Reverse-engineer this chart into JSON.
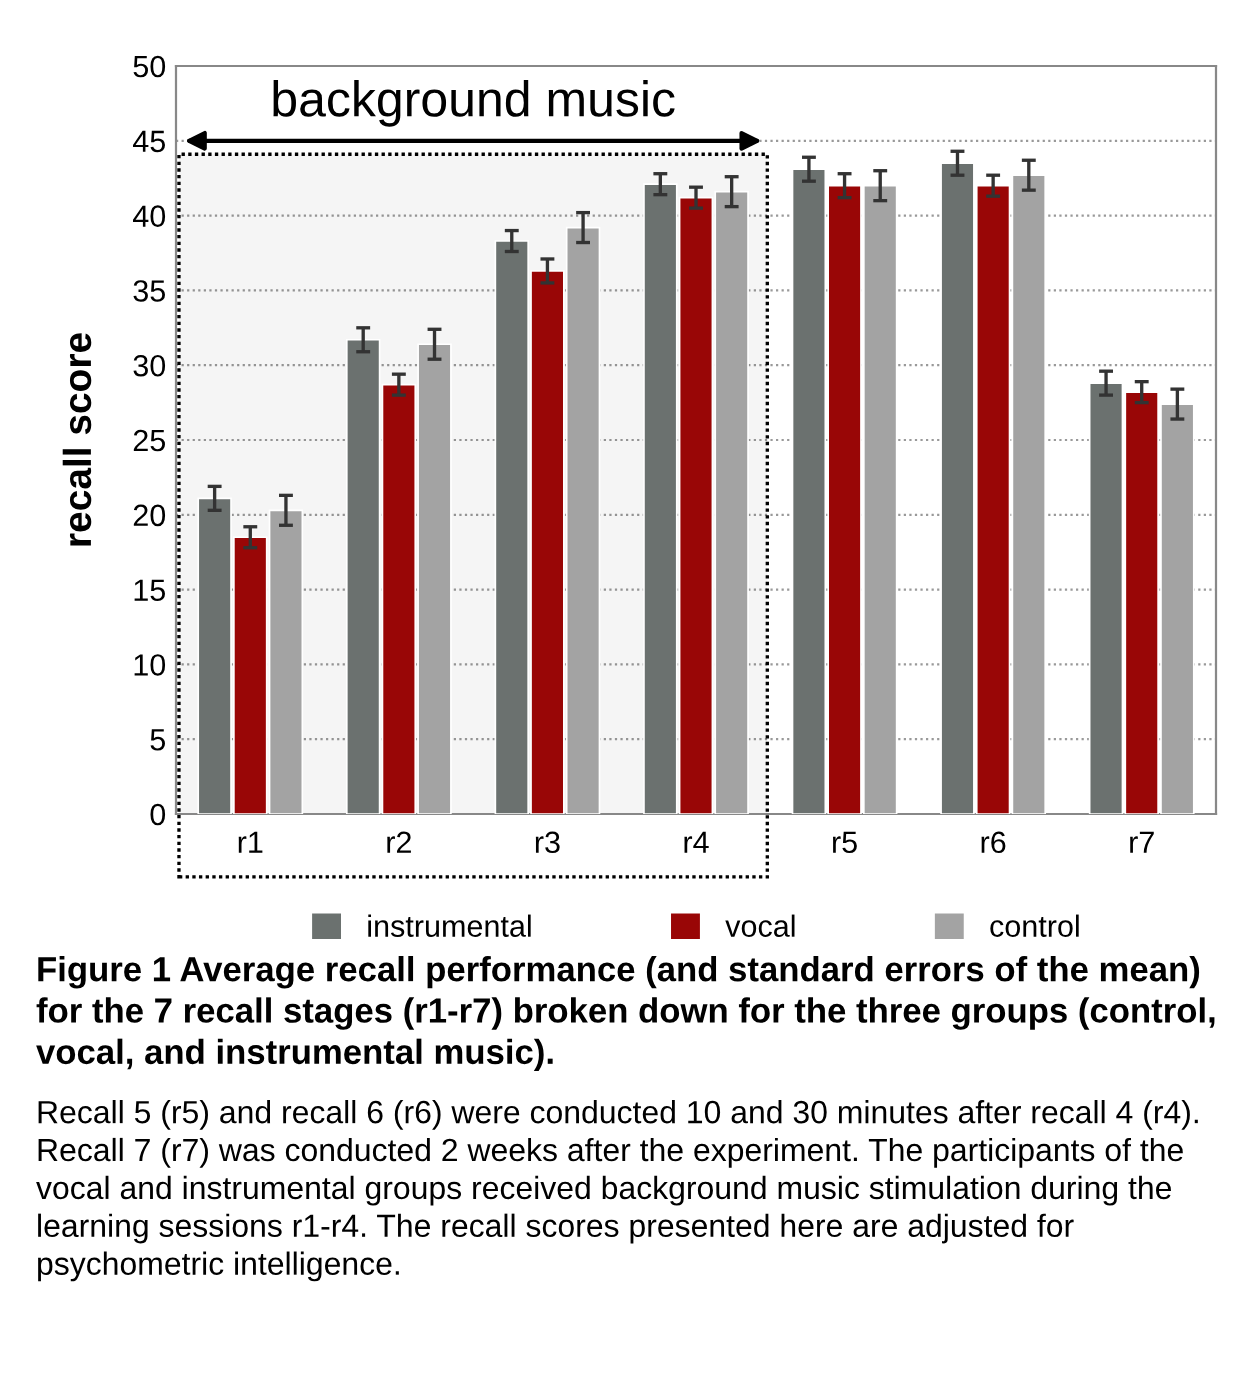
{
  "chart_data": {
    "type": "bar",
    "ylabel": "recall score",
    "categories": [
      "r1",
      "r2",
      "r3",
      "r4",
      "r5",
      "r6",
      "r7"
    ],
    "series": [
      {
        "name": "instrumental",
        "color": "#6b716f",
        "values": [
          21.1,
          31.7,
          38.3,
          42.1,
          43.1,
          43.5,
          28.8
        ],
        "errors": [
          0.8,
          0.8,
          0.7,
          0.7,
          0.8,
          0.8,
          0.8
        ]
      },
      {
        "name": "vocal",
        "color": "#990606",
        "values": [
          18.5,
          28.7,
          36.3,
          41.2,
          42.0,
          42.0,
          28.2
        ],
        "errors": [
          0.7,
          0.7,
          0.8,
          0.7,
          0.8,
          0.7,
          0.7
        ]
      },
      {
        "name": "control",
        "color": "#a3a3a3",
        "values": [
          20.3,
          31.4,
          39.2,
          41.6,
          42.0,
          42.7,
          27.4
        ],
        "errors": [
          1.0,
          1.0,
          1.0,
          1.0,
          1.0,
          1.0,
          1.0
        ]
      }
    ],
    "ylim": [
      0,
      50
    ],
    "yticks": [
      0,
      5,
      10,
      15,
      20,
      25,
      30,
      35,
      40,
      45,
      50
    ],
    "grid": "y",
    "legend": "bottom",
    "bands": [
      {
        "axis": "x",
        "from": "r1",
        "to": "r4",
        "label": "background music",
        "color": "#000000"
      }
    ],
    "annotations": [
      "Figure 1 Average recall performance (and standard errors of the mean) for the 7 recall stages (r1-r7) broken down for the three groups (control, vocal, and instrumental music).",
      "Recall 5 (r5) and recall 6 (r6) were conducted 10 and 30 minutes after recall 4 (r4). Recall 7 (r7) was conducted 2 weeks after the experiment. The participants of the vocal and instrumental groups received background music stimulation during the learning sessions r1-r4. The recall scores presented here are adjusted for psychometric intelligence."
    ]
  }
}
